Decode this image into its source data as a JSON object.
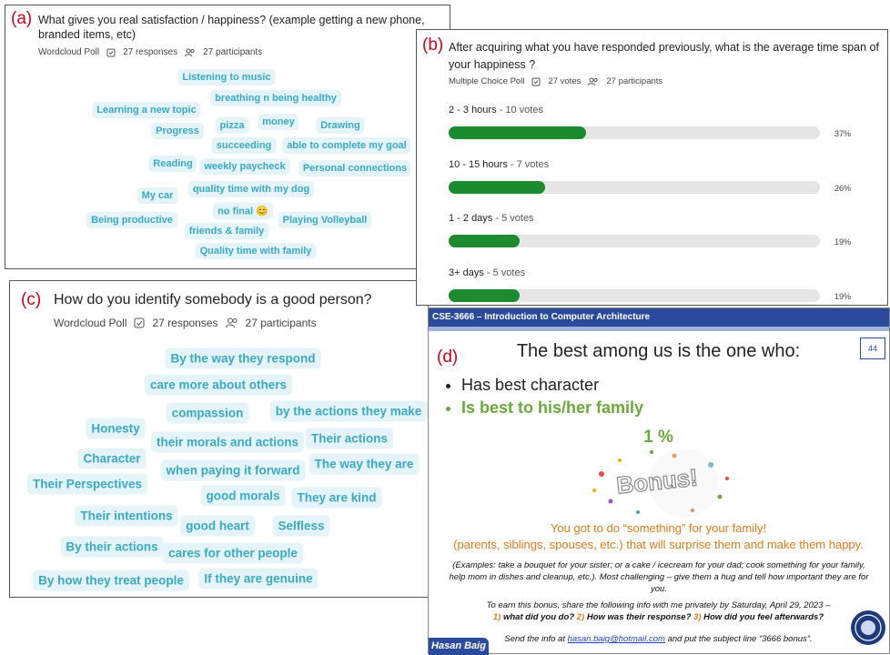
{
  "panel_a": {
    "tag": "(a)",
    "question": "What gives you real satisfaction / happiness? (example getting a new phone, branded items, etc)",
    "poll_type": "Wordcloud Poll",
    "responses": "27 responses",
    "participants": "27 participants",
    "words": [
      "Listening to music",
      "breathing n being healthy",
      "Learning a new topic",
      "Progress",
      "pizza",
      "money",
      "Drawing",
      "succeeding",
      "able to complete my goal",
      "Reading",
      "weekly paycheck",
      "Personal connections",
      "My car",
      "quality time with my dog",
      "no final 😊",
      "Being productive",
      "Playing Volleyball",
      "friends & family",
      "Quality time with family"
    ]
  },
  "panel_b": {
    "tag": "(b)",
    "question": "After acquiring what you have responded previously, what is the average time span of your happiness ?",
    "poll_type": "Multiple Choice Poll",
    "votes": "27 votes",
    "participants": "27 participants",
    "options": [
      {
        "label": "2 - 3 hours",
        "votes_label": "- 10 votes",
        "percent": 37,
        "percent_label": "37%"
      },
      {
        "label": "10 - 15 hours",
        "votes_label": "- 7 votes",
        "percent": 26,
        "percent_label": "26%"
      },
      {
        "label": "1 - 2 days",
        "votes_label": "- 5 votes",
        "percent": 19,
        "percent_label": "19%"
      },
      {
        "label": "3+ days",
        "votes_label": "- 5 votes",
        "percent": 19,
        "percent_label": "19%"
      }
    ]
  },
  "panel_c": {
    "tag": "(c)",
    "question": "How do you identify somebody is a good person?",
    "poll_type": "Wordcloud Poll",
    "responses": "27 responses",
    "participants": "27 participants",
    "words": [
      "By the way they respond",
      "care more about others",
      "compassion",
      "by the actions they make",
      "Honesty",
      "their morals and actions",
      "Their actions",
      "Character",
      "The way they are",
      "when paying it forward",
      "Their Perspectives",
      "good morals",
      "They are kind",
      "Their intentions",
      "good heart",
      "Selfless",
      "By their actions",
      "cares for other people",
      "By how they treat people",
      "If they are genuine"
    ]
  },
  "panel_d": {
    "tag": "(d)",
    "header": "CSE-3666 – Introduction to Computer Architecture",
    "slide_number": "44",
    "title": "The best among us is the one who:",
    "bullets": [
      "Has best character",
      "Is best to his/her family"
    ],
    "bonus_amount": "1 %",
    "bonus_image_text": "Bonus!",
    "lines": [
      "You got to do “something” for your family!",
      "(parents, siblings, spouses, etc.) that will surprise them and make them happy."
    ],
    "examples": "(Examples: take a bouquet for your sister; or a cake / icecream for your dad;  cook something for your family, help mom in dishes and cleanup, etc.). Most challenging – give them a hug and tell how important they are for you.",
    "earn": "To earn this bonus, share the following info with me privately by Saturday, April 29, 2023 –",
    "questions": [
      {
        "num": "1)",
        "text": "what did you do?"
      },
      {
        "num": "2)",
        "text": "How was their response?"
      },
      {
        "num": "3)",
        "text": "How did you feel afterwards?"
      }
    ],
    "send_before": "Send the info at",
    "email": "hasan.baig@hotmail.com",
    "send_after": "and put the subject line “3666 bonus”.",
    "author": "Hasan Baig"
  }
}
